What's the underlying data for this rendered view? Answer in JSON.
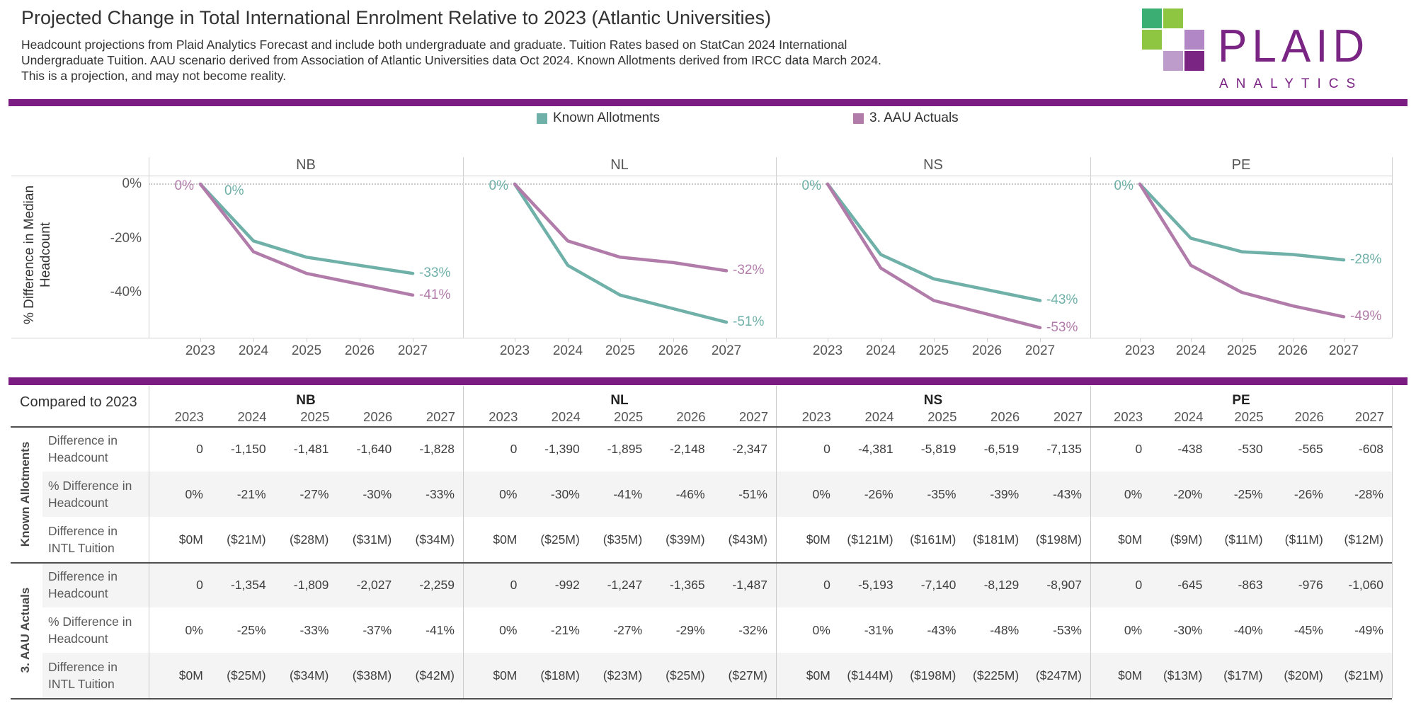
{
  "header": {
    "title": "Projected Change in Total International Enrolment Relative to 2023 (Atlantic Universities)",
    "subtitle_lines": [
      "Headcount projections from Plaid Analytics Forecast and include both undergraduate and graduate. Tuition Rates based on StatCan 2024 International",
      "Undergraduate Tuition. AAU scenario derived from Association of Atlantic Universities data Oct 2024. Known Allotments derived from IRCC data March 2024.",
      "This is a projection, and may not become reality."
    ],
    "logo": {
      "brand": "PLAID",
      "sub": "ANALYTICS"
    }
  },
  "colors": {
    "accent_bar": "#7A1C82",
    "teal": "#6FB0A8",
    "mauve": "#B17CA9",
    "logo_purple": "#7A2483",
    "logo_green_dark": "#3BAE73",
    "logo_green_light": "#8EC641",
    "logo_purple_light": "#B287C5",
    "logo_purple_mid": "#BD9CCC"
  },
  "legend": [
    {
      "label": "Known Allotments",
      "color": "#6FB0A8"
    },
    {
      "label": "3. AAU Actuals",
      "color": "#B17CA9"
    }
  ],
  "chart_data": {
    "type": "line",
    "title": "Projected Change in Total International Enrolment Relative to 2023 (Atlantic Universities)",
    "ylabel": "% Difference in Median Headcount",
    "ylabel_lines": [
      "% Difference in Median",
      "Headcount"
    ],
    "yticks": [
      "0%",
      "-20%",
      "-40%"
    ],
    "ylim": [
      -57,
      5
    ],
    "grid": "dotted zero line only",
    "legend_position": "top",
    "x": [
      "2023",
      "2024",
      "2025",
      "2026",
      "2027"
    ],
    "panels": [
      {
        "name": "NB",
        "series": [
          {
            "name": "Known Allotments",
            "color_key": "teal",
            "values": [
              0,
              -21,
              -27,
              -30,
              -33
            ],
            "end_label": "-33%"
          },
          {
            "name": "3. AAU Actuals",
            "color_key": "mauve",
            "values": [
              0,
              -25,
              -33,
              -37,
              -41
            ],
            "end_label": "-41%"
          }
        ],
        "start_labels": [
          {
            "text": "0%",
            "color_key": "mauve",
            "side": "before"
          },
          {
            "text": "0%",
            "color_key": "teal",
            "side": "after"
          }
        ]
      },
      {
        "name": "NL",
        "series": [
          {
            "name": "Known Allotments",
            "color_key": "teal",
            "values": [
              0,
              -30,
              -41,
              -46,
              -51
            ],
            "end_label": "-51%"
          },
          {
            "name": "3. AAU Actuals",
            "color_key": "mauve",
            "values": [
              0,
              -21,
              -27,
              -29,
              -32
            ],
            "end_label": "-32%"
          }
        ],
        "start_labels": [
          {
            "text": "0%",
            "color_key": "teal",
            "side": "before"
          }
        ]
      },
      {
        "name": "NS",
        "series": [
          {
            "name": "Known Allotments",
            "color_key": "teal",
            "values": [
              0,
              -26,
              -35,
              -39,
              -43
            ],
            "end_label": "-43%"
          },
          {
            "name": "3. AAU Actuals",
            "color_key": "mauve",
            "values": [
              0,
              -31,
              -43,
              -48,
              -53
            ],
            "end_label": "-53%"
          }
        ],
        "start_labels": [
          {
            "text": "0%",
            "color_key": "teal",
            "side": "before"
          }
        ]
      },
      {
        "name": "PE",
        "series": [
          {
            "name": "Known Allotments",
            "color_key": "teal",
            "values": [
              0,
              -20,
              -25,
              -26,
              -28
            ],
            "end_label": "-28%"
          },
          {
            "name": "3. AAU Actuals",
            "color_key": "mauve",
            "values": [
              0,
              -30,
              -40,
              -45,
              -49
            ],
            "end_label": "-49%"
          }
        ],
        "start_labels": [
          {
            "text": "0%",
            "color_key": "teal",
            "side": "before"
          }
        ]
      }
    ]
  },
  "table": {
    "corner_label": "Compared to 2023",
    "years": [
      "2023",
      "2024",
      "2025",
      "2026",
      "2027"
    ],
    "provinces": [
      "NB",
      "NL",
      "NS",
      "PE"
    ],
    "groups": [
      {
        "label": "Known Allotments",
        "rows": [
          {
            "label_lines": [
              "Difference in",
              "Headcount"
            ],
            "values": {
              "NB": [
                "0",
                "-1,150",
                "-1,481",
                "-1,640",
                "-1,828"
              ],
              "NL": [
                "0",
                "-1,390",
                "-1,895",
                "-2,148",
                "-2,347"
              ],
              "NS": [
                "0",
                "-4,381",
                "-5,819",
                "-6,519",
                "-7,135"
              ],
              "PE": [
                "0",
                "-438",
                "-530",
                "-565",
                "-608"
              ]
            }
          },
          {
            "label_lines": [
              "% Difference in",
              "Headcount"
            ],
            "values": {
              "NB": [
                "0%",
                "-21%",
                "-27%",
                "-30%",
                "-33%"
              ],
              "NL": [
                "0%",
                "-30%",
                "-41%",
                "-46%",
                "-51%"
              ],
              "NS": [
                "0%",
                "-26%",
                "-35%",
                "-39%",
                "-43%"
              ],
              "PE": [
                "0%",
                "-20%",
                "-25%",
                "-26%",
                "-28%"
              ]
            }
          },
          {
            "label_lines": [
              "Difference in",
              "INTL Tuition"
            ],
            "values": {
              "NB": [
                "$0M",
                "($21M)",
                "($28M)",
                "($31M)",
                "($34M)"
              ],
              "NL": [
                "$0M",
                "($25M)",
                "($35M)",
                "($39M)",
                "($43M)"
              ],
              "NS": [
                "$0M",
                "($121M)",
                "($161M)",
                "($181M)",
                "($198M)"
              ],
              "PE": [
                "$0M",
                "($9M)",
                "($11M)",
                "($11M)",
                "($12M)"
              ]
            }
          }
        ]
      },
      {
        "label": "3. AAU Actuals",
        "rows": [
          {
            "label_lines": [
              "Difference in",
              "Headcount"
            ],
            "values": {
              "NB": [
                "0",
                "-1,354",
                "-1,809",
                "-2,027",
                "-2,259"
              ],
              "NL": [
                "0",
                "-992",
                "-1,247",
                "-1,365",
                "-1,487"
              ],
              "NS": [
                "0",
                "-5,193",
                "-7,140",
                "-8,129",
                "-8,907"
              ],
              "PE": [
                "0",
                "-645",
                "-863",
                "-976",
                "-1,060"
              ]
            }
          },
          {
            "label_lines": [
              "% Difference in",
              "Headcount"
            ],
            "values": {
              "NB": [
                "0%",
                "-25%",
                "-33%",
                "-37%",
                "-41%"
              ],
              "NL": [
                "0%",
                "-21%",
                "-27%",
                "-29%",
                "-32%"
              ],
              "NS": [
                "0%",
                "-31%",
                "-43%",
                "-48%",
                "-53%"
              ],
              "PE": [
                "0%",
                "-30%",
                "-40%",
                "-45%",
                "-49%"
              ]
            }
          },
          {
            "label_lines": [
              "Difference in",
              "INTL Tuition"
            ],
            "values": {
              "NB": [
                "$0M",
                "($25M)",
                "($34M)",
                "($38M)",
                "($42M)"
              ],
              "NL": [
                "$0M",
                "($18M)",
                "($23M)",
                "($25M)",
                "($27M)"
              ],
              "NS": [
                "$0M",
                "($144M)",
                "($198M)",
                "($225M)",
                "($247M)"
              ],
              "PE": [
                "$0M",
                "($13M)",
                "($17M)",
                "($20M)",
                "($21M)"
              ]
            }
          }
        ]
      }
    ]
  }
}
